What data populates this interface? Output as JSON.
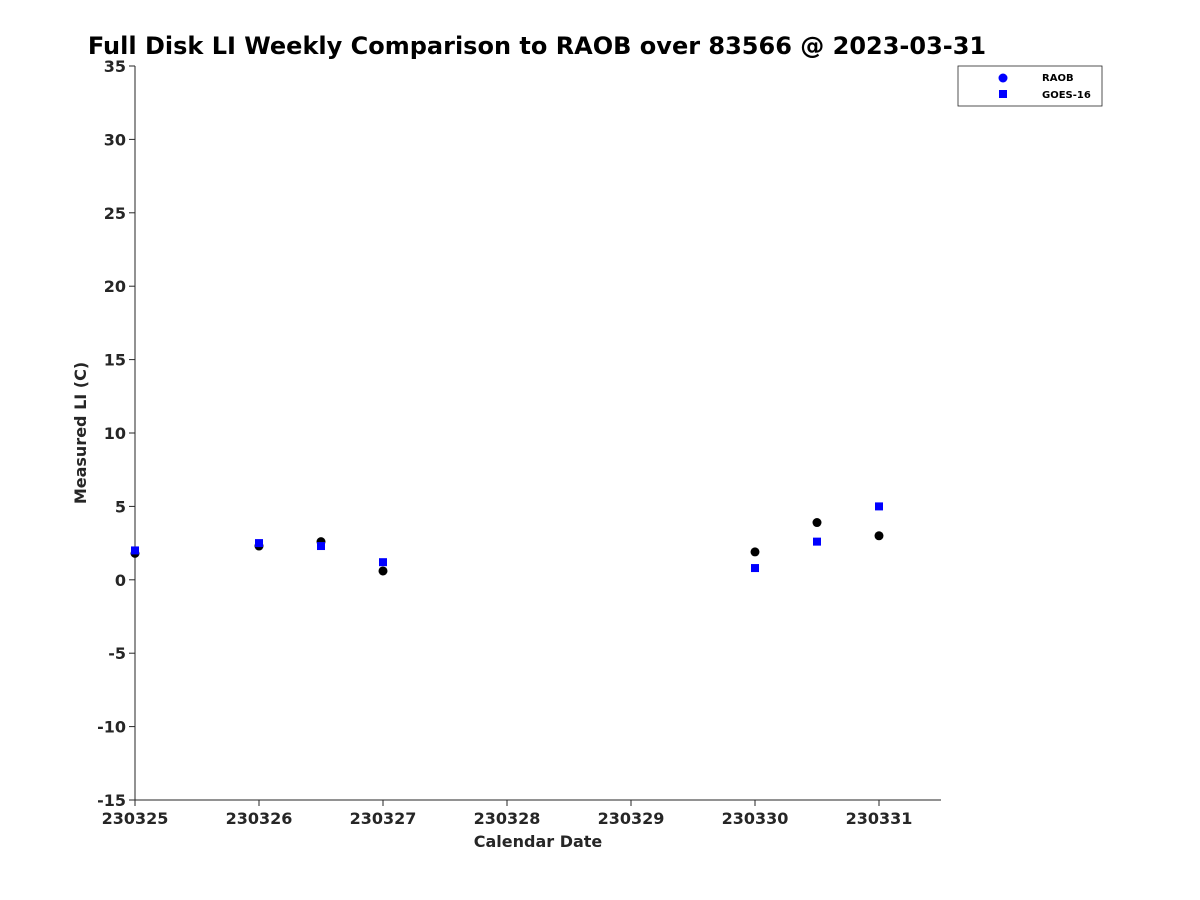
{
  "chart_data": {
    "type": "scatter",
    "title": "Full Disk LI Weekly Comparison to RAOB over 83566 @ 2023-03-31",
    "xlabel": "Calendar Date",
    "ylabel": "Measured LI (C)",
    "xlim": [
      0,
      6.5
    ],
    "ylim": [
      -15,
      35
    ],
    "grid": false,
    "legend_position": "top-right",
    "x_ticks": [
      {
        "value": 0,
        "label": "230325"
      },
      {
        "value": 1,
        "label": "230326"
      },
      {
        "value": 2,
        "label": "230327"
      },
      {
        "value": 3,
        "label": "230328"
      },
      {
        "value": 4,
        "label": "230329"
      },
      {
        "value": 5,
        "label": "230330"
      },
      {
        "value": 6,
        "label": "230331"
      }
    ],
    "y_ticks": [
      {
        "value": 35,
        "label": "35"
      },
      {
        "value": 30,
        "label": "30"
      },
      {
        "value": 25,
        "label": "25"
      },
      {
        "value": 20,
        "label": "20"
      },
      {
        "value": 15,
        "label": "15"
      },
      {
        "value": 10,
        "label": "10"
      },
      {
        "value": 5,
        "label": "5"
      },
      {
        "value": 0,
        "label": "0"
      },
      {
        "value": -5,
        "label": "-5"
      },
      {
        "value": -10,
        "label": "-10"
      },
      {
        "value": -15,
        "label": "-15"
      }
    ],
    "series": [
      {
        "name": "RAOB",
        "legend_color": "#0000ff",
        "color": "#000000",
        "marker": "circle",
        "x": [
          0,
          1,
          1.5,
          2,
          5,
          5.5,
          6
        ],
        "y": [
          1.8,
          2.3,
          2.6,
          0.6,
          1.9,
          3.9,
          3.0
        ]
      },
      {
        "name": "GOES-16",
        "legend_color": "#0000ff",
        "color": "#0000ff",
        "marker": "square",
        "x": [
          0,
          1,
          1.5,
          2,
          5,
          5.5,
          6
        ],
        "y": [
          2.0,
          2.5,
          2.3,
          1.2,
          0.8,
          2.6,
          5.0
        ]
      }
    ]
  }
}
